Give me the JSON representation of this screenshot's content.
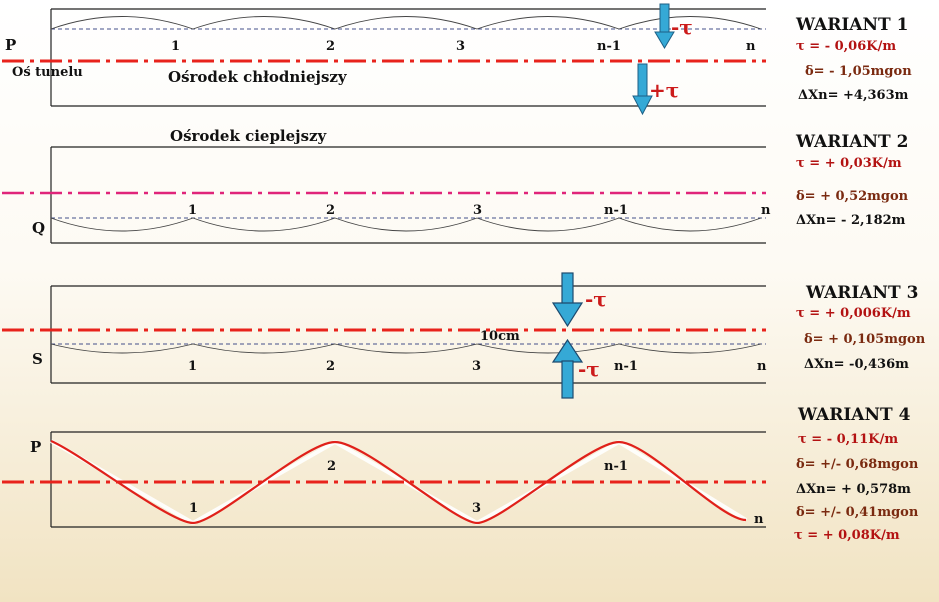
{
  "labels": {
    "axis": "Oś tunelu",
    "cold_medium": "Ośrodek chłodniejszy",
    "warm_medium": "Ośrodek cieplejszy",
    "gap": "10cm"
  },
  "arrows": {
    "p1_top": "-τ",
    "p1_bottom": "+τ",
    "p3_top": "-τ",
    "p3_bottom": "-τ"
  },
  "panels": [
    {
      "start_label": "P",
      "points": [
        "1",
        "2",
        "3",
        "n-1",
        "n"
      ],
      "title": "WARIANT  1",
      "tau": "τ = - 0,06K/m",
      "delta": "δ= - 1,05mgon",
      "dxn": "ΔXn= +4,363m"
    },
    {
      "start_label": "Q",
      "points": [
        "1",
        "2",
        "3",
        "n-1",
        "n"
      ],
      "title": "WARIANT  2",
      "tau": "τ = + 0,03K/m",
      "delta": "δ= + 0,52mgon",
      "dxn": "ΔXn= - 2,182m"
    },
    {
      "start_label": "S",
      "points": [
        "1",
        "2",
        "3",
        "n-1",
        "n"
      ],
      "title": "WARIANT 3",
      "tau": "τ = + 0,006K/m",
      "delta": "δ= + 0,105mgon",
      "dxn": "ΔXn= -0,436m"
    },
    {
      "start_label": "P",
      "points": [
        "1",
        "2",
        "3",
        "n-1",
        "n"
      ],
      "title": "WARIANT 4",
      "tau": "τ = - 0,11K/m",
      "delta": "δ= +/- 0,68mgon",
      "dxn": "ΔXn= + 0,578m",
      "delta2": "δ= +/-  0,41mgon",
      "tau2": "τ =  + 0,08K/m"
    }
  ],
  "colors": {
    "axis_red": "#e8231c",
    "axis_pink": "#e0247a",
    "wave_red": "#e0201a",
    "arrow_blue": "#35a9d6",
    "label_red": "#b31212",
    "label_brown": "#7a2a10"
  }
}
